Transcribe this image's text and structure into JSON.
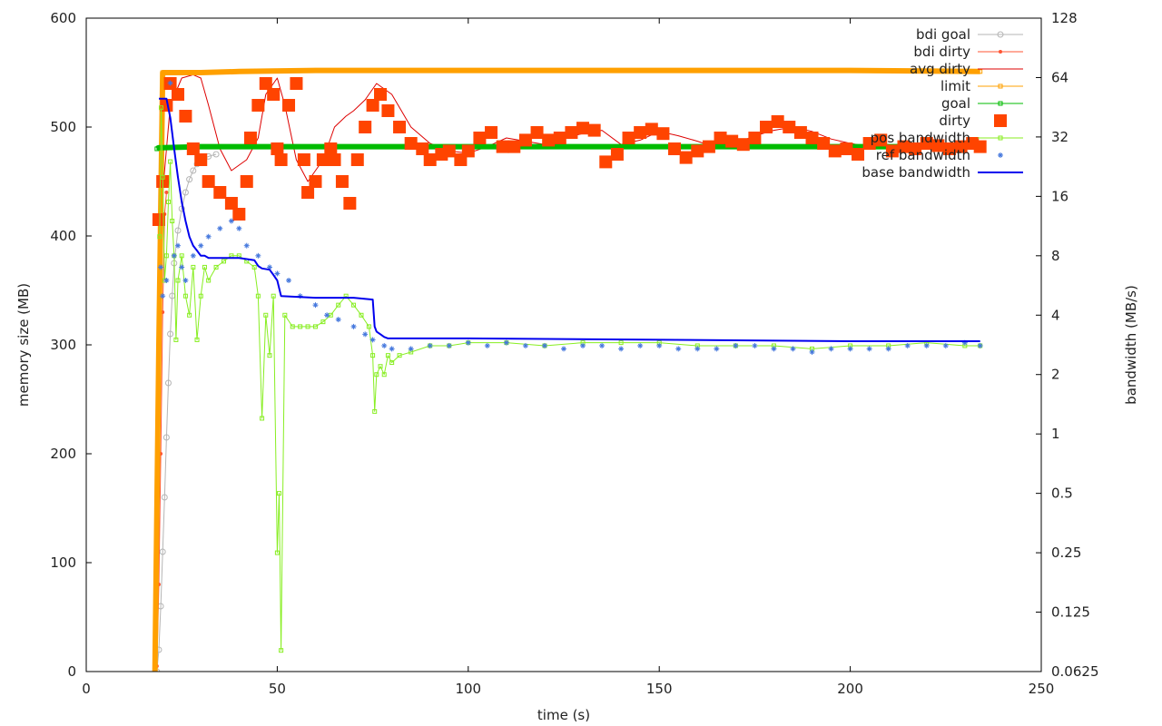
{
  "chart_data": {
    "type": "line",
    "title": "",
    "xlabel": "time (s)",
    "ylabel_left": "memory size (MB)",
    "ylabel_right": "bandwidth (MB/s)",
    "xlim": [
      0,
      250
    ],
    "ylim_left": [
      0,
      600
    ],
    "ylim_right": [
      0.0625,
      128
    ],
    "right_axis_scale": "log2",
    "x_ticks": [
      "0",
      "50",
      "100",
      "150",
      "200",
      "250"
    ],
    "x_tick_values": [
      0,
      50,
      100,
      150,
      200,
      250
    ],
    "y_left_ticks": [
      "0",
      "100",
      "200",
      "300",
      "400",
      "500",
      "600"
    ],
    "y_left_tick_values": [
      0,
      100,
      200,
      300,
      400,
      500,
      600
    ],
    "y_right_ticks": [
      "0.0625",
      "0.125",
      "0.25",
      "0.5",
      "1",
      "2",
      "4",
      "8",
      "16",
      "32",
      "64",
      "128"
    ],
    "y_right_tick_values": [
      0.0625,
      0.125,
      0.25,
      0.5,
      1,
      2,
      4,
      8,
      16,
      32,
      64,
      128
    ],
    "grid": false,
    "legend_position": "top-right",
    "series": [
      {
        "name": "bdi goal",
        "axis": "left",
        "color": "#b5b5b5",
        "style": "line+circle",
        "x": [
          18.5,
          19,
          19.5,
          20,
          20.5,
          21,
          21.5,
          22,
          22.5,
          23,
          24,
          25,
          26,
          27,
          28,
          29,
          30,
          32,
          34
        ],
        "y": [
          0,
          20,
          60,
          110,
          160,
          215,
          265,
          310,
          345,
          375,
          405,
          425,
          440,
          452,
          460,
          466,
          470,
          473,
          475
        ]
      },
      {
        "name": "bdi dirty",
        "axis": "left",
        "color": "#ff5533",
        "style": "line+point",
        "x": [
          18.5,
          19,
          19.5,
          20,
          20.5,
          21
        ],
        "y": [
          5,
          80,
          200,
          330,
          420,
          440
        ]
      },
      {
        "name": "avg dirty",
        "axis": "left",
        "color": "#dd0000",
        "style": "line",
        "x": [
          20,
          22,
          25,
          28,
          30,
          32,
          35,
          38,
          42,
          45,
          47,
          50,
          52,
          55,
          58,
          62,
          65,
          68,
          70,
          73,
          76,
          80,
          85,
          90,
          95,
          100,
          105,
          110,
          115,
          120,
          125,
          130,
          135,
          140,
          145,
          150,
          155,
          160,
          165,
          170,
          175,
          180,
          185,
          190,
          195,
          200,
          205,
          210,
          215,
          220,
          225,
          230,
          234
        ],
        "y": [
          440,
          520,
          545,
          548,
          545,
          520,
          480,
          460,
          470,
          490,
          530,
          545,
          520,
          470,
          450,
          470,
          500,
          510,
          515,
          525,
          540,
          530,
          500,
          485,
          478,
          476,
          482,
          490,
          487,
          484,
          490,
          494,
          497,
          484,
          488,
          496,
          492,
          487,
          481,
          485,
          492,
          497,
          500,
          496,
          489,
          485,
          482,
          484,
          480,
          482,
          485,
          483,
          482
        ]
      },
      {
        "name": "limit",
        "axis": "left",
        "color": "#ffa000",
        "style": "line+square",
        "x": [
          18,
          19,
          20,
          22,
          30,
          40,
          60,
          100,
          150,
          200,
          234
        ],
        "y": [
          0,
          300,
          550,
          550,
          550,
          551,
          552,
          552,
          552,
          552,
          551
        ]
      },
      {
        "name": "goal",
        "axis": "left",
        "color": "#00bb00",
        "style": "line+square",
        "x": [
          18.5,
          19,
          20,
          30,
          60,
          100,
          150,
          200,
          234
        ],
        "y": [
          480,
          481,
          481,
          482,
          482,
          482,
          482,
          482,
          482
        ]
      },
      {
        "name": "dirty",
        "axis": "left",
        "color": "#ff4400",
        "style": "square",
        "x": [
          19,
          20,
          21,
          22,
          24,
          26,
          28,
          30,
          32,
          35,
          38,
          40,
          42,
          43,
          45,
          47,
          49,
          50,
          51,
          53,
          55,
          57,
          58,
          60,
          62,
          64,
          65,
          67,
          69,
          71,
          73,
          75,
          77,
          79,
          82,
          85,
          88,
          90,
          93,
          95,
          98,
          100,
          103,
          106,
          109,
          112,
          115,
          118,
          121,
          124,
          127,
          130,
          133,
          136,
          139,
          142,
          145,
          148,
          151,
          154,
          157,
          160,
          163,
          166,
          169,
          172,
          175,
          178,
          181,
          184,
          187,
          190,
          193,
          196,
          199,
          202,
          205,
          208,
          211,
          214,
          217,
          220,
          223,
          226,
          229,
          232,
          234
        ],
        "y": [
          415,
          450,
          520,
          540,
          530,
          510,
          480,
          470,
          450,
          440,
          430,
          420,
          450,
          490,
          520,
          540,
          530,
          480,
          470,
          520,
          540,
          470,
          440,
          450,
          470,
          480,
          470,
          450,
          430,
          470,
          500,
          520,
          530,
          515,
          500,
          485,
          480,
          470,
          475,
          478,
          470,
          478,
          490,
          495,
          482,
          482,
          488,
          495,
          488,
          490,
          495,
          499,
          497,
          468,
          475,
          490,
          495,
          498,
          494,
          480,
          472,
          478,
          482,
          490,
          487,
          484,
          490,
          500,
          505,
          500,
          495,
          490,
          485,
          478,
          480,
          475,
          485,
          488,
          478,
          482,
          480,
          485,
          483,
          480,
          482,
          485,
          482
        ]
      },
      {
        "name": "pos bandwidth",
        "axis": "right",
        "color": "#88ee22",
        "style": "line+square",
        "x": [
          19.2,
          19.6,
          20,
          20.5,
          21,
          21.5,
          22,
          22.5,
          23,
          23.5,
          24,
          25,
          26,
          27,
          28,
          29,
          30,
          31,
          32,
          34,
          36,
          38,
          40,
          42,
          44,
          45,
          46,
          47,
          48,
          49,
          50,
          50.5,
          51,
          52,
          54,
          56,
          58,
          60,
          62,
          64,
          66,
          68,
          70,
          72,
          74,
          75,
          75.5,
          76,
          77,
          78,
          79,
          80,
          82,
          85,
          90,
          95,
          100,
          110,
          120,
          130,
          140,
          150,
          160,
          170,
          180,
          190,
          200,
          210,
          220,
          230,
          234
        ],
        "y": [
          10,
          45,
          20,
          6,
          8,
          15,
          24,
          12,
          8,
          3,
          6,
          8,
          5,
          4,
          7,
          3,
          5,
          7,
          6,
          7,
          7.5,
          8,
          8,
          7.5,
          7,
          5,
          1.2,
          4,
          2.5,
          5,
          0.25,
          0.5,
          0.08,
          4,
          3.5,
          3.5,
          3.5,
          3.5,
          3.7,
          4,
          4.5,
          5,
          4.5,
          4,
          3.5,
          2.5,
          1.3,
          2,
          2.2,
          2,
          2.5,
          2.3,
          2.5,
          2.6,
          2.8,
          2.8,
          2.9,
          2.9,
          2.8,
          2.9,
          2.9,
          2.9,
          2.8,
          2.8,
          2.8,
          2.7,
          2.8,
          2.8,
          2.9,
          2.8,
          2.8
        ]
      },
      {
        "name": "ref bandwidth",
        "axis": "right",
        "color": "#4477dd",
        "style": "point",
        "x": [
          19.5,
          20,
          21,
          22,
          23,
          24,
          25,
          26,
          28,
          30,
          32,
          35,
          38,
          40,
          42,
          45,
          48,
          50,
          53,
          56,
          60,
          63,
          66,
          70,
          73,
          75,
          78,
          80,
          85,
          90,
          95,
          100,
          105,
          110,
          115,
          120,
          125,
          130,
          135,
          140,
          145,
          150,
          155,
          160,
          165,
          170,
          175,
          180,
          185,
          190,
          195,
          200,
          205,
          210,
          215,
          220,
          225,
          230,
          234
        ],
        "y": [
          7,
          5,
          6,
          60,
          8,
          9,
          7,
          6,
          8,
          9,
          10,
          11,
          12,
          11,
          9,
          8,
          7,
          6.5,
          6,
          5,
          4.5,
          4,
          3.8,
          3.5,
          3.2,
          3,
          2.8,
          2.7,
          2.7,
          2.8,
          2.8,
          2.9,
          2.8,
          2.9,
          2.8,
          2.8,
          2.7,
          2.8,
          2.8,
          2.7,
          2.8,
          2.8,
          2.7,
          2.7,
          2.7,
          2.8,
          2.8,
          2.7,
          2.7,
          2.6,
          2.7,
          2.7,
          2.7,
          2.7,
          2.8,
          2.8,
          2.8,
          2.9,
          2.8
        ]
      },
      {
        "name": "base bandwidth",
        "axis": "right",
        "color": "#0000ee",
        "style": "line",
        "x": [
          19,
          21,
          22,
          23,
          24,
          25,
          26,
          27,
          28,
          29,
          30,
          31,
          32,
          40,
          44,
          45,
          46,
          48,
          49,
          50,
          51,
          60,
          70,
          75,
          75.5,
          76,
          77,
          78,
          79,
          100,
          150,
          200,
          234
        ],
        "y": [
          50,
          50,
          40,
          28,
          20,
          15,
          12,
          10,
          9,
          8.5,
          8,
          8,
          7.8,
          7.8,
          7.6,
          7.1,
          6.9,
          6.8,
          6.4,
          6,
          5,
          4.9,
          4.9,
          4.8,
          3.5,
          3.3,
          3.2,
          3.1,
          3.05,
          3.05,
          3.0,
          2.95,
          2.95
        ]
      }
    ]
  }
}
